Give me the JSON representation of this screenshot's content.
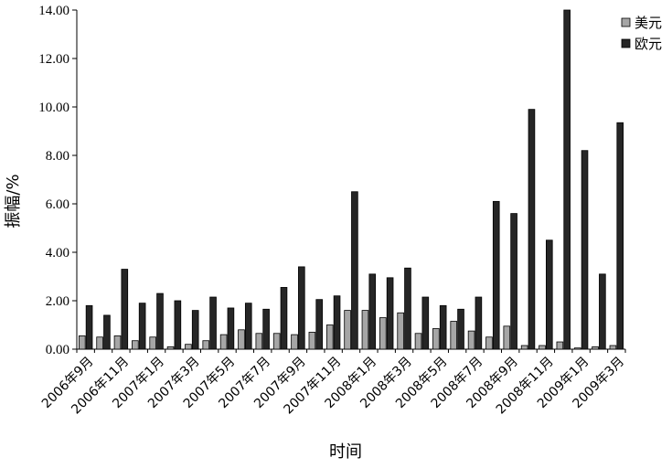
{
  "chart_data": {
    "type": "bar",
    "xlabel": "时间",
    "ylabel": "振幅/%",
    "ylim": [
      0,
      14
    ],
    "yticks": [
      "0.00",
      "2.00",
      "4.00",
      "6.00",
      "8.00",
      "10.00",
      "12.00",
      "14.00"
    ],
    "legend_position": "top-right",
    "categories": [
      "2006年9月",
      "2006年10月",
      "2006年11月",
      "2006年12月",
      "2007年1月",
      "2007年2月",
      "2007年3月",
      "2007年4月",
      "2007年5月",
      "2007年6月",
      "2007年7月",
      "2007年8月",
      "2007年9月",
      "2007年10月",
      "2007年11月",
      "2007年12月",
      "2008年1月",
      "2008年2月",
      "2008年3月",
      "2008年4月",
      "2008年5月",
      "2008年6月",
      "2008年7月",
      "2008年8月",
      "2008年9月",
      "2008年10月",
      "2008年11月",
      "2008年12月",
      "2009年1月",
      "2009年2月",
      "2009年3月"
    ],
    "xtick_labels": [
      "2006年9月",
      "2006年11月",
      "2007年1月",
      "2007年3月",
      "2007年5月",
      "2007年7月",
      "2007年9月",
      "2007年11月",
      "2008年1月",
      "2008年3月",
      "2008年5月",
      "2008年7月",
      "2008年9月",
      "2008年11月",
      "2009年1月",
      "2009年3月"
    ],
    "series": [
      {
        "name": "美元",
        "color": "#a6a6a6",
        "values": [
          0.55,
          0.5,
          0.55,
          0.35,
          0.5,
          0.1,
          0.2,
          0.35,
          0.6,
          0.8,
          0.65,
          0.65,
          0.6,
          0.7,
          1.0,
          1.6,
          1.6,
          1.3,
          1.5,
          0.65,
          0.85,
          1.15,
          0.75,
          0.5,
          0.95,
          0.15,
          0.15,
          0.3,
          0.05,
          0.1,
          0.15
        ]
      },
      {
        "name": "欧元",
        "color": "#262626",
        "values": [
          1.8,
          1.4,
          3.3,
          1.9,
          2.3,
          2.0,
          1.6,
          2.15,
          1.7,
          1.9,
          1.65,
          2.55,
          3.4,
          2.05,
          2.2,
          6.5,
          3.1,
          2.95,
          3.35,
          2.15,
          1.8,
          1.65,
          2.15,
          6.1,
          5.6,
          9.9,
          4.5,
          14.0,
          8.2,
          3.1,
          9.35
        ]
      }
    ]
  }
}
